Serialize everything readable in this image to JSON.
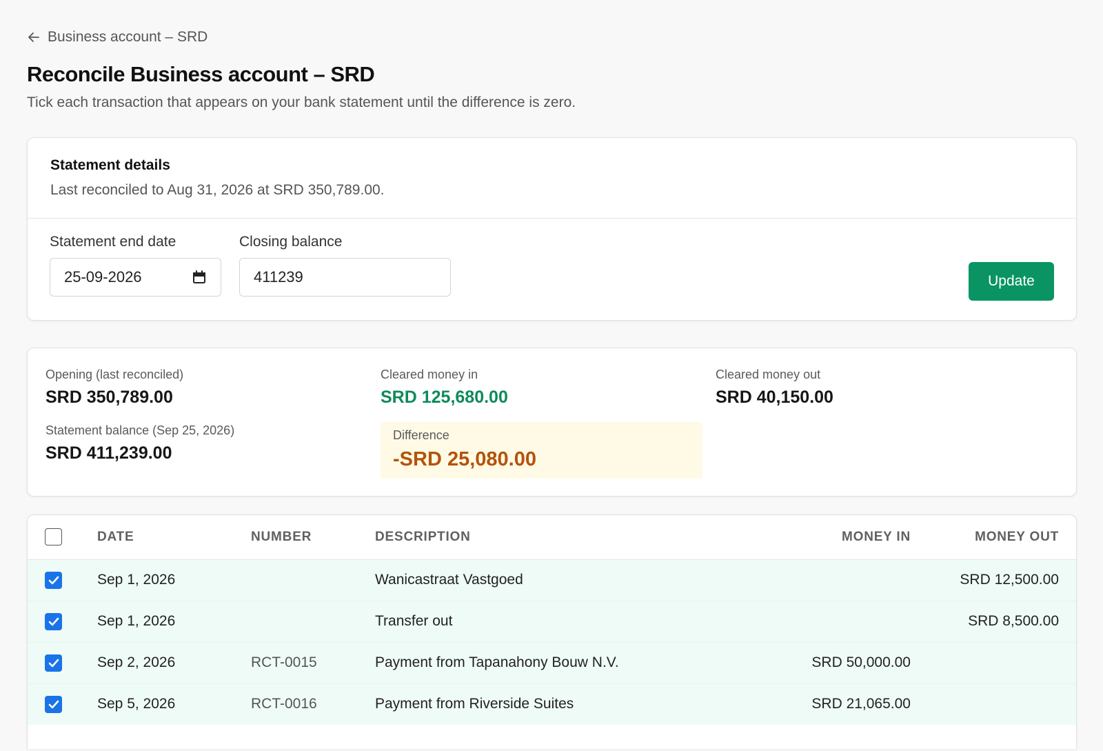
{
  "nav": {
    "back_label": "Business account – SRD"
  },
  "page": {
    "title": "Reconcile Business account – SRD",
    "subtitle": "Tick each transaction that appears on your bank statement until the difference is zero."
  },
  "statement": {
    "heading": "Statement details",
    "last_reconciled": "Last reconciled to Aug 31, 2026 at SRD 350,789.00.",
    "end_date_label": "Statement end date",
    "end_date_value": "25-09-2026",
    "closing_label": "Closing balance",
    "closing_value": "411239",
    "update_label": "Update"
  },
  "summary": {
    "opening_label": "Opening (last reconciled)",
    "opening_value": "SRD 350,789.00",
    "cleared_in_label": "Cleared money in",
    "cleared_in_value": "SRD 125,680.00",
    "cleared_out_label": "Cleared money out",
    "cleared_out_value": "SRD 40,150.00",
    "statement_balance_label": "Statement balance (Sep 25, 2026)",
    "statement_balance_value": "SRD 411,239.00",
    "difference_label": "Difference",
    "difference_value": "-SRD 25,080.00"
  },
  "table": {
    "headers": {
      "date": "DATE",
      "number": "NUMBER",
      "description": "DESCRIPTION",
      "money_in": "MONEY IN",
      "money_out": "MONEY OUT"
    },
    "select_all_checked": false,
    "rows": [
      {
        "checked": true,
        "date": "Sep 1, 2026",
        "number": "",
        "description": "Wanicastraat Vastgoed",
        "money_in": "",
        "money_out": "SRD 12,500.00"
      },
      {
        "checked": true,
        "date": "Sep 1, 2026",
        "number": "",
        "description": "Transfer out",
        "money_in": "",
        "money_out": "SRD 8,500.00"
      },
      {
        "checked": true,
        "date": "Sep 2, 2026",
        "number": "RCT-0015",
        "description": "Payment from Tapanahony Bouw N.V.",
        "money_in": "SRD 50,000.00",
        "money_out": ""
      },
      {
        "checked": true,
        "date": "Sep 5, 2026",
        "number": "RCT-0016",
        "description": "Payment from Riverside Suites",
        "money_in": "SRD 21,065.00",
        "money_out": ""
      }
    ]
  },
  "colors": {
    "accent_green": "#0a9463",
    "checkbox_blue": "#1a73e8",
    "difference_orange": "#b45309",
    "cleared_row_bg": "#effbf6"
  }
}
